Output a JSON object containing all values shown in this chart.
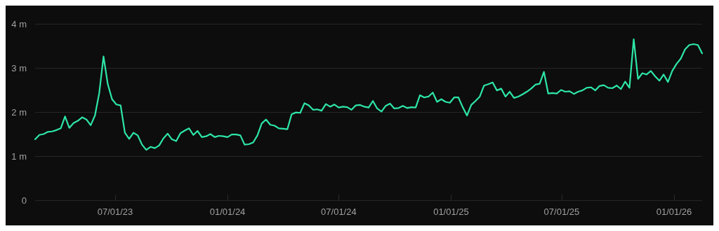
{
  "chart_data": {
    "type": "line",
    "x": [
      "2023-02-20",
      "2023-02-27",
      "2023-03-06",
      "2023-03-13",
      "2023-03-20",
      "2023-03-27",
      "2023-04-03",
      "2023-04-10",
      "2023-04-17",
      "2023-04-24",
      "2023-05-01",
      "2023-05-08",
      "2023-05-15",
      "2023-05-22",
      "2023-05-29",
      "2023-06-05",
      "2023-06-12",
      "2023-06-19",
      "2023-06-26",
      "2023-07-03",
      "2023-07-10",
      "2023-07-17",
      "2023-07-24",
      "2023-07-31",
      "2023-08-07",
      "2023-08-14",
      "2023-08-21",
      "2023-08-28",
      "2023-09-04",
      "2023-09-11",
      "2023-09-18",
      "2023-09-25",
      "2023-10-02",
      "2023-10-09",
      "2023-10-16",
      "2023-10-23",
      "2023-10-30",
      "2023-11-06",
      "2023-11-13",
      "2023-11-20",
      "2023-11-27",
      "2023-12-04",
      "2023-12-11",
      "2023-12-18",
      "2023-12-25",
      "2024-01-01",
      "2024-01-08",
      "2024-01-15",
      "2024-01-22",
      "2024-01-29",
      "2024-02-05",
      "2024-02-12",
      "2024-02-19",
      "2024-02-26",
      "2024-03-04",
      "2024-03-11",
      "2024-03-18",
      "2024-03-25",
      "2024-04-01",
      "2024-04-08",
      "2024-04-15",
      "2024-04-22",
      "2024-04-29",
      "2024-05-06",
      "2024-05-13",
      "2024-05-20",
      "2024-05-27",
      "2024-06-03",
      "2024-06-10",
      "2024-06-17",
      "2024-06-24",
      "2024-07-01",
      "2024-07-08",
      "2024-07-15",
      "2024-07-22",
      "2024-07-29",
      "2024-08-05",
      "2024-08-12",
      "2024-08-19",
      "2024-08-26",
      "2024-09-02",
      "2024-09-09",
      "2024-09-16",
      "2024-09-23",
      "2024-09-30",
      "2024-10-07",
      "2024-10-14",
      "2024-10-21",
      "2024-10-28",
      "2024-11-04",
      "2024-11-11",
      "2024-11-18",
      "2024-11-25",
      "2024-12-02",
      "2024-12-09",
      "2024-12-16",
      "2024-12-23",
      "2024-12-30",
      "2025-01-06",
      "2025-01-13",
      "2025-01-20",
      "2025-01-27",
      "2025-02-03",
      "2025-02-10",
      "2025-02-17",
      "2025-02-24",
      "2025-03-03",
      "2025-03-10",
      "2025-03-17",
      "2025-03-24",
      "2025-03-31",
      "2025-04-07",
      "2025-04-14",
      "2025-04-21",
      "2025-04-28",
      "2025-05-05",
      "2025-05-12",
      "2025-05-19",
      "2025-05-26",
      "2025-06-02",
      "2025-06-09",
      "2025-06-16",
      "2025-06-23",
      "2025-06-30",
      "2025-07-07",
      "2025-07-14",
      "2025-07-21",
      "2025-07-28",
      "2025-08-04",
      "2025-08-11",
      "2025-08-18",
      "2025-08-25",
      "2025-09-01",
      "2025-09-08",
      "2025-09-15",
      "2025-09-22",
      "2025-09-29",
      "2025-10-06",
      "2025-10-13",
      "2025-10-20",
      "2025-10-27",
      "2025-11-03",
      "2025-11-10",
      "2025-11-17",
      "2025-11-24",
      "2025-12-01",
      "2025-12-08",
      "2025-12-15",
      "2025-12-22",
      "2025-12-29",
      "2026-01-05",
      "2026-01-12",
      "2026-01-19",
      "2026-01-26",
      "2026-02-02",
      "2026-02-09",
      "2026-02-16"
    ],
    "series": [
      {
        "color": "#2ee6a6",
        "values": [
          1.38,
          1.48,
          1.5,
          1.55,
          1.56,
          1.59,
          1.63,
          1.9,
          1.64,
          1.75,
          1.8,
          1.88,
          1.83,
          1.7,
          1.92,
          2.43,
          3.26,
          2.63,
          2.29,
          2.17,
          2.15,
          1.53,
          1.39,
          1.53,
          1.47,
          1.26,
          1.14,
          1.21,
          1.18,
          1.24,
          1.4,
          1.51,
          1.38,
          1.34,
          1.52,
          1.58,
          1.63,
          1.48,
          1.57,
          1.43,
          1.45,
          1.5,
          1.43,
          1.46,
          1.45,
          1.43,
          1.49,
          1.49,
          1.47,
          1.26,
          1.27,
          1.31,
          1.47,
          1.74,
          1.83,
          1.71,
          1.69,
          1.63,
          1.62,
          1.61,
          1.95,
          1.99,
          1.98,
          2.2,
          2.15,
          2.05,
          2.06,
          2.03,
          2.18,
          2.12,
          2.17,
          2.1,
          2.12,
          2.11,
          2.05,
          2.15,
          2.16,
          2.12,
          2.1,
          2.25,
          2.08,
          2.01,
          2.14,
          2.19,
          2.08,
          2.09,
          2.14,
          2.09,
          2.11,
          2.1,
          2.38,
          2.33,
          2.35,
          2.44,
          2.23,
          2.29,
          2.23,
          2.21,
          2.33,
          2.33,
          2.11,
          1.92,
          2.16,
          2.25,
          2.35,
          2.6,
          2.63,
          2.67,
          2.49,
          2.53,
          2.35,
          2.46,
          2.32,
          2.35,
          2.4,
          2.46,
          2.53,
          2.62,
          2.64,
          2.91,
          2.42,
          2.43,
          2.42,
          2.5,
          2.46,
          2.47,
          2.41,
          2.46,
          2.49,
          2.55,
          2.56,
          2.49,
          2.59,
          2.61,
          2.55,
          2.54,
          2.6,
          2.52,
          2.69,
          2.55,
          3.65,
          2.75,
          2.88,
          2.85,
          2.93,
          2.81,
          2.71,
          2.85,
          2.68,
          2.93,
          3.09,
          3.21,
          3.42,
          3.52,
          3.54,
          3.52,
          3.33
        ]
      }
    ],
    "xlim": [
      "2023-02-20",
      "2026-02-16"
    ],
    "xticks": [
      {
        "value": "2023-07-01",
        "label": "07/01/23"
      },
      {
        "value": "2024-01-01",
        "label": "01/01/24"
      },
      {
        "value": "2024-07-01",
        "label": "07/01/24"
      },
      {
        "value": "2025-01-01",
        "label": "01/01/25"
      },
      {
        "value": "2025-07-01",
        "label": "07/01/25"
      },
      {
        "value": "2026-01-01",
        "label": "01/01/26"
      }
    ],
    "ylim": [
      0,
      4
    ],
    "yticks": [
      0,
      {
        "value": 1,
        "label": "1 m"
      },
      {
        "value": 2,
        "label": "2 m"
      },
      {
        "value": 3,
        "label": "3 m"
      },
      {
        "value": 4,
        "label": "4 m"
      }
    ],
    "grid": "y",
    "marker": "none",
    "line_style": "solid"
  }
}
